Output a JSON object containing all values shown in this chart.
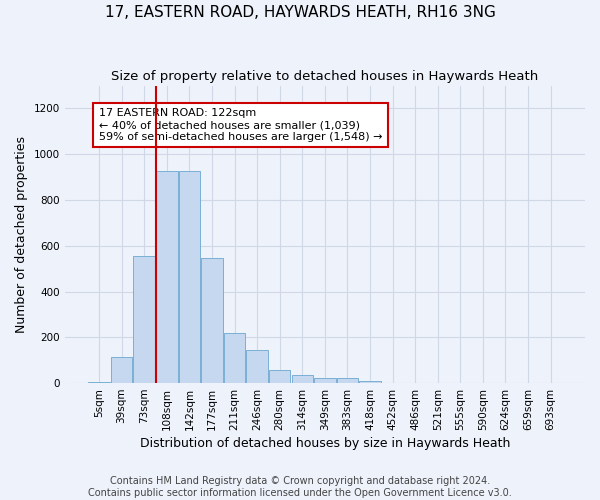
{
  "title": "17, EASTERN ROAD, HAYWARDS HEATH, RH16 3NG",
  "subtitle": "Size of property relative to detached houses in Haywards Heath",
  "xlabel": "Distribution of detached houses by size in Haywards Heath",
  "ylabel": "Number of detached properties",
  "bar_color": "#c5d8f0",
  "bar_edge_color": "#7aafd4",
  "background_color": "#eef2fb",
  "grid_color": "#d0d8e8",
  "categories": [
    "5sqm",
    "39sqm",
    "73sqm",
    "108sqm",
    "142sqm",
    "177sqm",
    "211sqm",
    "246sqm",
    "280sqm",
    "314sqm",
    "349sqm",
    "383sqm",
    "418sqm",
    "452sqm",
    "486sqm",
    "521sqm",
    "555sqm",
    "590sqm",
    "624sqm",
    "659sqm",
    "693sqm"
  ],
  "values": [
    5,
    115,
    555,
    925,
    925,
    545,
    220,
    145,
    55,
    35,
    22,
    22,
    10,
    0,
    0,
    0,
    0,
    0,
    0,
    0,
    0
  ],
  "ylim": [
    0,
    1300
  ],
  "yticks": [
    0,
    200,
    400,
    600,
    800,
    1000,
    1200
  ],
  "vline_index": 3,
  "vline_color": "#cc0000",
  "annotation_text": "17 EASTERN ROAD: 122sqm\n← 40% of detached houses are smaller (1,039)\n59% of semi-detached houses are larger (1,548) →",
  "annotation_box_color": "#ffffff",
  "annotation_box_edge_color": "#cc0000",
  "footer_text": "Contains HM Land Registry data © Crown copyright and database right 2024.\nContains public sector information licensed under the Open Government Licence v3.0.",
  "title_fontsize": 11,
  "subtitle_fontsize": 9.5,
  "xlabel_fontsize": 9,
  "ylabel_fontsize": 9,
  "footer_fontsize": 7,
  "tick_fontsize": 7.5,
  "annotation_fontsize": 8
}
